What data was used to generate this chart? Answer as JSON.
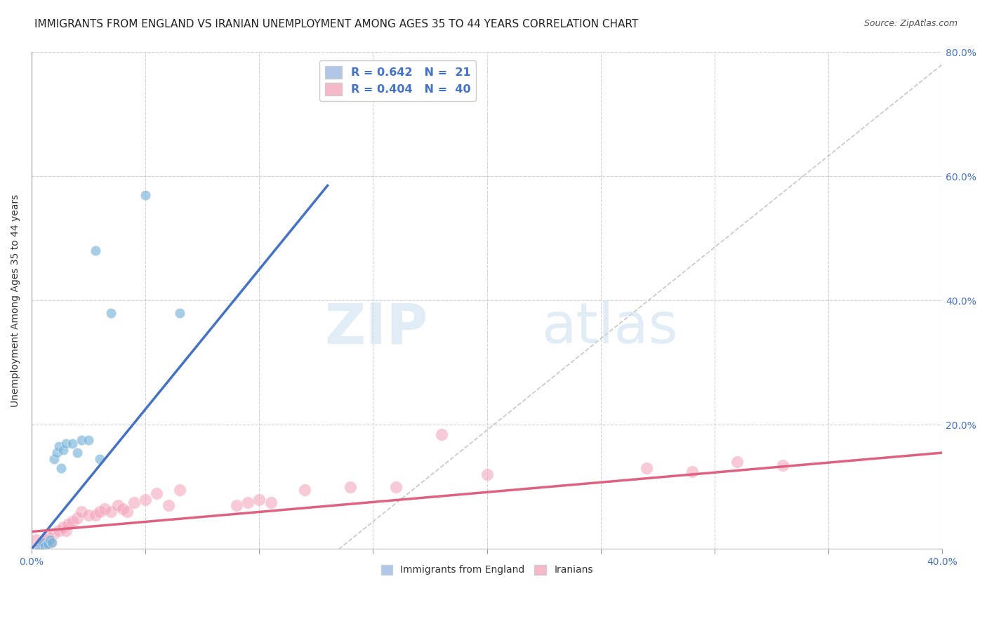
{
  "title": "IMMIGRANTS FROM ENGLAND VS IRANIAN UNEMPLOYMENT AMONG AGES 35 TO 44 YEARS CORRELATION CHART",
  "source": "Source: ZipAtlas.com",
  "ylabel": "Unemployment Among Ages 35 to 44 years",
  "xlim": [
    0.0,
    0.4
  ],
  "ylim": [
    0.0,
    0.8
  ],
  "xticks": [
    0.0,
    0.05,
    0.1,
    0.15,
    0.2,
    0.25,
    0.3,
    0.35,
    0.4
  ],
  "yticks": [
    0.0,
    0.2,
    0.4,
    0.6,
    0.8
  ],
  "england_color": "#7ab3d9",
  "iran_color": "#f4a0b8",
  "england_scatter_x": [
    0.003,
    0.005,
    0.006,
    0.007,
    0.008,
    0.009,
    0.01,
    0.011,
    0.012,
    0.013,
    0.014,
    0.015,
    0.018,
    0.02,
    0.022,
    0.025,
    0.028,
    0.03,
    0.035,
    0.05,
    0.065
  ],
  "england_scatter_y": [
    0.005,
    0.01,
    0.005,
    0.008,
    0.015,
    0.01,
    0.145,
    0.155,
    0.165,
    0.13,
    0.16,
    0.17,
    0.17,
    0.155,
    0.175,
    0.175,
    0.48,
    0.145,
    0.38,
    0.57,
    0.38
  ],
  "iran_scatter_x": [
    0.002,
    0.004,
    0.005,
    0.006,
    0.007,
    0.008,
    0.01,
    0.012,
    0.014,
    0.015,
    0.016,
    0.018,
    0.02,
    0.022,
    0.025,
    0.028,
    0.03,
    0.032,
    0.035,
    0.038,
    0.04,
    0.042,
    0.045,
    0.05,
    0.055,
    0.06,
    0.065,
    0.09,
    0.095,
    0.1,
    0.105,
    0.12,
    0.14,
    0.16,
    0.18,
    0.2,
    0.27,
    0.29,
    0.31,
    0.33
  ],
  "iran_scatter_y": [
    0.015,
    0.01,
    0.008,
    0.015,
    0.02,
    0.01,
    0.025,
    0.03,
    0.035,
    0.03,
    0.04,
    0.045,
    0.05,
    0.06,
    0.055,
    0.055,
    0.06,
    0.065,
    0.06,
    0.07,
    0.065,
    0.06,
    0.075,
    0.08,
    0.09,
    0.07,
    0.095,
    0.07,
    0.075,
    0.08,
    0.075,
    0.095,
    0.1,
    0.1,
    0.185,
    0.12,
    0.13,
    0.125,
    0.14,
    0.135
  ],
  "england_line_x": [
    0.0,
    0.13
  ],
  "england_line_y": [
    0.0,
    0.585
  ],
  "iran_line_x": [
    0.0,
    0.4
  ],
  "iran_line_y": [
    0.028,
    0.155
  ],
  "diagonal_line_x": [
    0.135,
    0.4
  ],
  "diagonal_line_y": [
    0.0,
    0.78
  ],
  "watermark_zip": "ZIP",
  "watermark_atlas": "atlas",
  "background_color": "#ffffff",
  "grid_color": "#cccccc",
  "title_fontsize": 11,
  "legend_r1": "R = 0.642",
  "legend_n1": "N =  21",
  "legend_r2": "R = 0.404",
  "legend_n2": "N =  40",
  "legend_color1": "#aec6e8",
  "legend_color2": "#f4b8c8",
  "bottom_legend_england": "Immigrants from England",
  "bottom_legend_iran": "Iranians"
}
